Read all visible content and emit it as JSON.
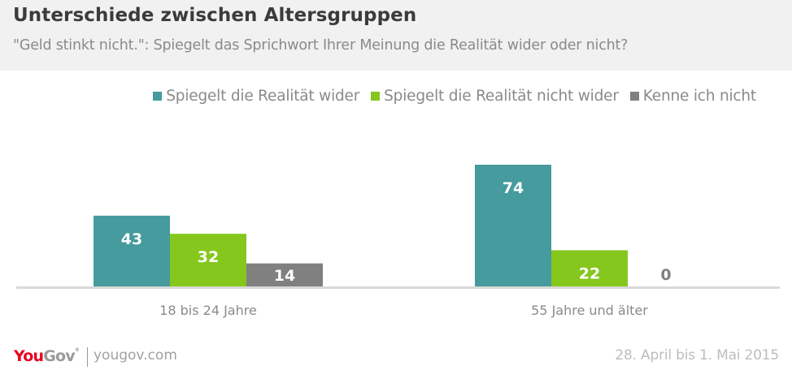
{
  "header": {
    "title": "Unterschiede zwischen Altersgruppen",
    "subtitle": "\"Geld stinkt nicht.\": Spiegelt das Sprichwort Ihrer Meinung die Realität wider oder nicht?"
  },
  "legend": [
    {
      "label": "Spiegelt die Realität wider",
      "color": "#459b9d"
    },
    {
      "label": "Spiegelt die Realität nicht wider",
      "color": "#85c71d"
    },
    {
      "label": "Kenne ich nicht",
      "color": "#808080"
    }
  ],
  "chart_data": {
    "type": "bar",
    "title": "Unterschiede zwischen Altersgruppen",
    "subtitle": "\"Geld stinkt nicht.\": Spiegelt das Sprichwort Ihrer Meinung die Realität wider oder nicht?",
    "categories": [
      "18 bis 24 Jahre",
      "55 Jahre und älter"
    ],
    "series": [
      {
        "name": "Spiegelt die Realität wider",
        "color": "#459b9d",
        "values": [
          43,
          74
        ]
      },
      {
        "name": "Spiegelt die Realität nicht wider",
        "color": "#85c71d",
        "values": [
          32,
          22
        ]
      },
      {
        "name": "Kenne ich nicht",
        "color": "#808080",
        "values": [
          14,
          0
        ]
      }
    ],
    "xlabel": "",
    "ylabel": "",
    "ylim": [
      0,
      74
    ],
    "grid": false,
    "legend_position": "top-right",
    "unit": "%"
  },
  "footer": {
    "logo_you": "You",
    "logo_gov": "Gov",
    "logo_reg": "®",
    "url": "yougov.com",
    "date": "28. April bis 1. Mai 2015"
  }
}
